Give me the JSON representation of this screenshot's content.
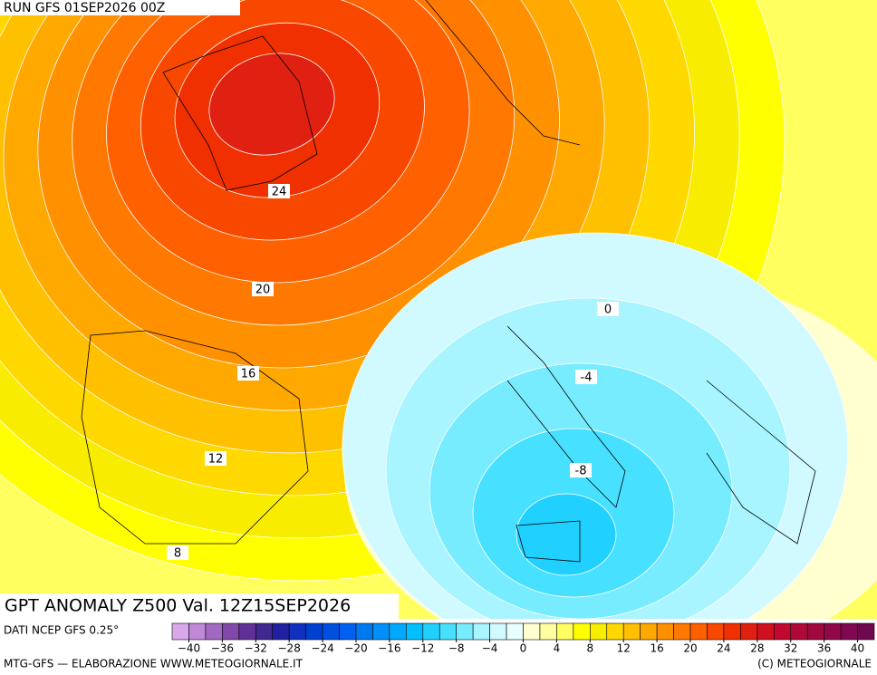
{
  "header": {
    "run": "RUN GFS 01SEP2026 00Z"
  },
  "map": {
    "contour_labels": [
      "24",
      "20",
      "16",
      "12",
      "8",
      "0",
      "-4",
      "-8"
    ]
  },
  "title": "GPT ANOMALY Z500 Val. 12Z15SEP2026",
  "source": "DATI NCEP GFS 0.25°",
  "colorbar": {
    "colors": [
      "#d8a8e8",
      "#c088d8",
      "#a068c0",
      "#8048a8",
      "#603098",
      "#402890",
      "#2020a0",
      "#1030c0",
      "#0040d0",
      "#0050e0",
      "#0060f0",
      "#0078f0",
      "#0090f8",
      "#00a8ff",
      "#00c0ff",
      "#20d0ff",
      "#48e0ff",
      "#78ecff",
      "#a8f4ff",
      "#d0faff",
      "#e8ffff",
      "#ffffd0",
      "#ffffa0",
      "#ffff60",
      "#ffff00",
      "#f8ec00",
      "#ffd800",
      "#ffc000",
      "#ffa800",
      "#ff9000",
      "#ff7800",
      "#ff6000",
      "#f84800",
      "#f03000",
      "#e02010",
      "#d01020",
      "#c00830",
      "#b00838",
      "#a00840",
      "#900848",
      "#800850",
      "#700850"
    ],
    "lim": [
      -42,
      42
    ],
    "ticks": [
      {
        "value": -40,
        "label": "−40"
      },
      {
        "value": -36,
        "label": "−36"
      },
      {
        "value": -32,
        "label": "−32"
      },
      {
        "value": -28,
        "label": "−28"
      },
      {
        "value": -24,
        "label": "−24"
      },
      {
        "value": -20,
        "label": "−20"
      },
      {
        "value": -16,
        "label": "−16"
      },
      {
        "value": -12,
        "label": "−12"
      },
      {
        "value": -8,
        "label": "−8"
      },
      {
        "value": -4,
        "label": "−4"
      },
      0,
      4,
      8,
      12,
      16,
      20,
      24,
      28,
      32,
      36,
      40
    ]
  },
  "footer": {
    "left": "MTG-GFS — ELABORAZIONE WWW.METEOGIORNALE.IT",
    "right": "(C) METEOGIORNALE"
  }
}
